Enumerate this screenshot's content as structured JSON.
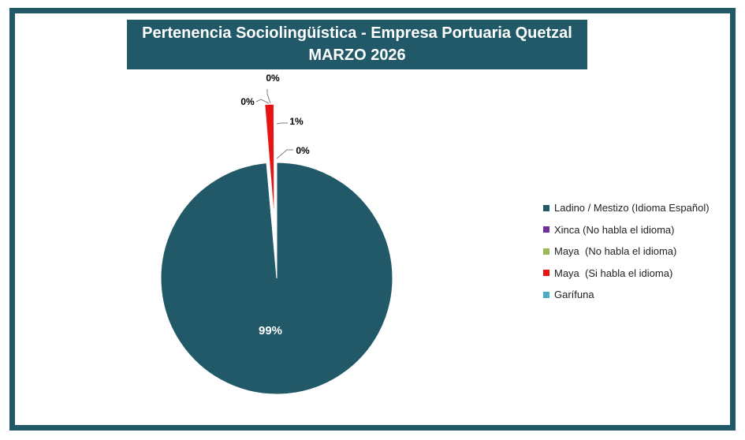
{
  "chart_data": {
    "type": "pie",
    "title": "Pertenencia Sociolingüística - Empresa Portuaria Quetzal",
    "subtitle": "MARZO 2026",
    "slices": [
      {
        "name": "Ladino / Mestizo (Idioma Español)",
        "value": 98.6,
        "label": "99%",
        "color": "#215968"
      },
      {
        "name": "Xinca (No habla el idioma)",
        "value": 0.05,
        "label": "0%",
        "color": "#7030a0"
      },
      {
        "name": "Maya  (No habla el idioma)",
        "value": 0.05,
        "label": "0%",
        "color": "#9bbb59"
      },
      {
        "name": "Maya  (Si habla el idioma)",
        "value": 1.25,
        "label": "1%",
        "color": "#e81414"
      },
      {
        "name": "Garífuna",
        "value": 0.05,
        "label": "0%",
        "color": "#4bacc6"
      }
    ],
    "legend_position": "right"
  }
}
